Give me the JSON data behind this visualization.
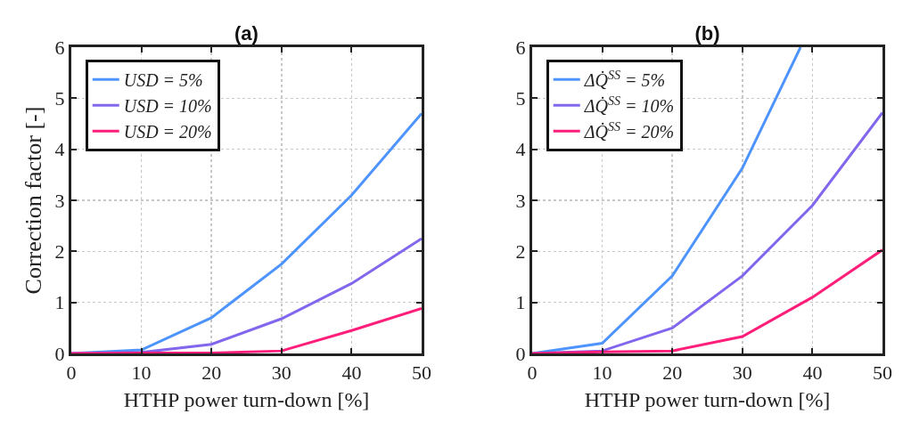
{
  "chart_data": [
    {
      "type": "line",
      "title": "(a)",
      "xlabel": "HTHP power turn-down [%]",
      "ylabel": "Correction factor [-]",
      "x": [
        0,
        10,
        20,
        30,
        40,
        50
      ],
      "xlim": [
        0,
        50
      ],
      "xticks": [
        0,
        10,
        20,
        30,
        40,
        50
      ],
      "ylim": [
        0,
        6
      ],
      "yticks": [
        0,
        1,
        2,
        3,
        4,
        5,
        6
      ],
      "grid": true,
      "legend": "top left",
      "marker": "none",
      "line_style": "solid",
      "series": [
        {
          "name": "USD = 5%",
          "color": "#4d94ff",
          "values": [
            0,
            0.07,
            0.7,
            1.75,
            3.1,
            4.7
          ]
        },
        {
          "name": "USD = 10%",
          "color": "#8266ee",
          "values": [
            0,
            0.02,
            0.18,
            0.68,
            1.37,
            2.25
          ]
        },
        {
          "name": "USD = 20%",
          "color": "#ff1f7a",
          "values": [
            0,
            0.01,
            0.01,
            0.05,
            0.45,
            0.88
          ]
        }
      ]
    },
    {
      "type": "line",
      "title": "(b)",
      "xlabel": "HTHP power turn-down [%]",
      "x": [
        0,
        10,
        20,
        30,
        40,
        50
      ],
      "xlim": [
        0,
        50
      ],
      "xticks": [
        0,
        10,
        20,
        30,
        40,
        50
      ],
      "ylim": [
        0,
        6
      ],
      "yticks": [
        0,
        1,
        2,
        3,
        4,
        5,
        6
      ],
      "grid": true,
      "legend": "top left",
      "marker": "none",
      "line_style": "solid",
      "series": [
        {
          "name": "ΔQ̇$^{SS}$ = 5%",
          "color": "#4d94ff",
          "x": [
            0,
            10,
            20,
            30,
            38.3
          ],
          "values": [
            0,
            0.2,
            1.52,
            3.63,
            6
          ]
        },
        {
          "name": "ΔQ̇$^{SS}$ = 10%",
          "color": "#8266ee",
          "values": [
            0,
            0.05,
            0.5,
            1.52,
            2.9,
            4.72
          ]
        },
        {
          "name": "ΔQ̇$^{SS}$ = 20%",
          "color": "#ff1f7a",
          "values": [
            0,
            0.03,
            0.05,
            0.33,
            1.1,
            2.03
          ]
        }
      ]
    }
  ]
}
